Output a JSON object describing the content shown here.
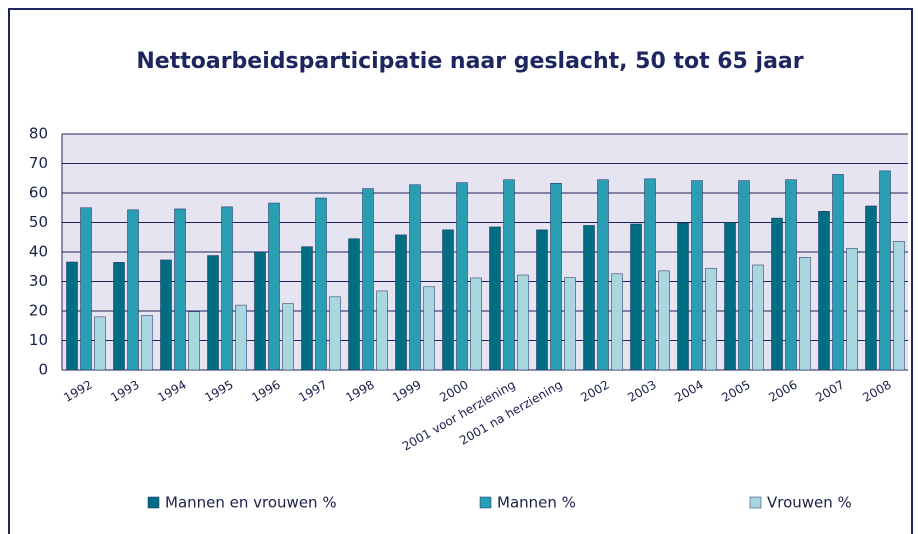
{
  "chart_data": {
    "type": "bar",
    "title": "Nettoarbeidsparticipatie naar geslacht, 50 tot 65 jaar",
    "categories": [
      "1992",
      "1993",
      "1994",
      "1995",
      "1996",
      "1997",
      "1998",
      "1999",
      "2000",
      "2001 voor herziening",
      "2001 na herziening",
      "2002",
      "2003",
      "2004",
      "2005",
      "2006",
      "2007",
      "2008"
    ],
    "series": [
      {
        "name": "Mannen en vrouwen %",
        "color": "#006e82",
        "values": [
          36.6,
          36.5,
          37.3,
          38.8,
          40,
          41.8,
          44.5,
          45.8,
          47.5,
          48.5,
          47.5,
          49,
          49.5,
          49.8,
          50,
          51.5,
          53.8,
          55.6
        ]
      },
      {
        "name": "Mannen %",
        "color": "#2a9fb3",
        "values": [
          55,
          54.3,
          54.6,
          55.3,
          56.6,
          58.3,
          61.5,
          62.8,
          63.5,
          64.5,
          63.3,
          64.5,
          64.8,
          64.2,
          64.2,
          64.5,
          66.3,
          67.5
        ]
      },
      {
        "name": "Vrouwen %",
        "color": "#a9d7df",
        "values": [
          18,
          18.5,
          19.8,
          22,
          22.5,
          24.8,
          26.8,
          28.2,
          31.2,
          32.2,
          31.3,
          32.6,
          33.6,
          34.5,
          35.6,
          38.2,
          41.2,
          43.6
        ]
      }
    ],
    "ylim": [
      0,
      80
    ],
    "yticks": [
      0,
      10,
      20,
      30,
      40,
      50,
      60,
      70,
      80
    ],
    "grid": true
  }
}
